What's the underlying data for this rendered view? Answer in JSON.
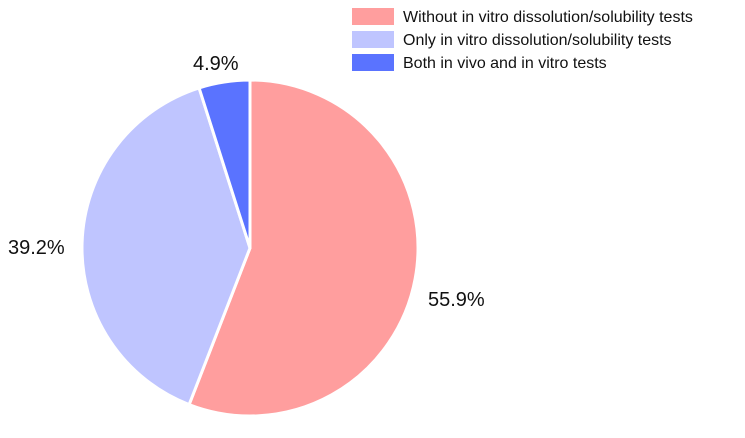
{
  "chart_data": {
    "type": "pie",
    "title": "",
    "start_angle": "top (12 o'clock), clockwise",
    "legend_position": "top-right",
    "slices": [
      {
        "name": "Without in vitro dissolution/solubility tests",
        "value": 55.9,
        "label": "55.9%",
        "color": "#ff9e9e"
      },
      {
        "name": "Only in vitro dissolution/solubility tests",
        "value": 39.2,
        "label": "39.2%",
        "color": "#bfc5ff"
      },
      {
        "name": "Both in vivo and in vitro tests",
        "value": 4.9,
        "label": "4.9%",
        "color": "#5a73ff"
      }
    ]
  }
}
